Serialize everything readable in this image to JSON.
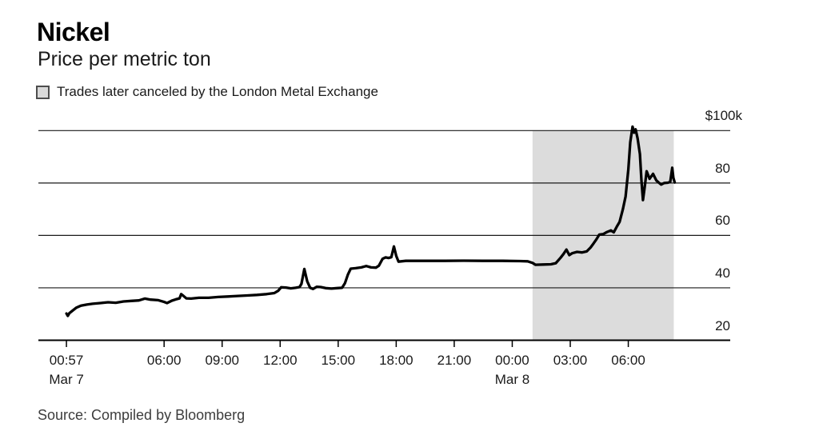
{
  "header": {
    "title": "Nickel",
    "subtitle": "Price per metric ton",
    "legend": {
      "label": "Trades later canceled by the London Metal Exchange",
      "swatch_fill": "#d9d9d9",
      "swatch_border": "#4d4d4d"
    }
  },
  "footer": {
    "source": "Source: Compiled by Bloomberg"
  },
  "colors": {
    "line": "#000000",
    "grid": "#1a1a1a",
    "axis": "#000000",
    "canceled_region_fill": "#dcdcdc",
    "background": "#ffffff"
  },
  "chart_data": {
    "type": "line",
    "title": "Nickel",
    "subtitle": "Price per metric ton",
    "ylabel": "Price per metric ton, thousands of USD",
    "grid": "on",
    "legend_position": "top-left",
    "y_axis": {
      "range": [
        20,
        100
      ],
      "ticks": [
        {
          "v": 20,
          "label": "20"
        },
        {
          "v": 40,
          "label": "40"
        },
        {
          "v": 60,
          "label": "60"
        },
        {
          "v": 80,
          "label": "80"
        },
        {
          "v": 100,
          "label": "$100k"
        }
      ]
    },
    "x_axis": {
      "unit": "hours since Mar 7 00:00",
      "t_min": -0.5,
      "t_max": 35.27,
      "ticks": [
        {
          "t": 0.95,
          "time": "00:57",
          "date": "Mar 7"
        },
        {
          "t": 6,
          "time": "06:00"
        },
        {
          "t": 9,
          "time": "09:00"
        },
        {
          "t": 12,
          "time": "12:00"
        },
        {
          "t": 15,
          "time": "15:00"
        },
        {
          "t": 18,
          "time": "18:00"
        },
        {
          "t": 21,
          "time": "21:00"
        },
        {
          "t": 24,
          "time": "00:00",
          "date": "Mar 8"
        },
        {
          "t": 27,
          "time": "03:00"
        },
        {
          "t": 30,
          "time": "06:00"
        }
      ]
    },
    "canceled_region": {
      "label": "Trades later canceled by the London Metal Exchange",
      "start_label": "Mar 8 ~01:00",
      "end_label": "Mar 8 ~08:20",
      "t_start": 25.05,
      "t_end": 32.35
    },
    "series": [
      {
        "name": "Nickel price ($k per metric ton)",
        "points": [
          [
            0.95,
            30.2
          ],
          [
            1.02,
            29.3
          ],
          [
            1.1,
            30.3
          ],
          [
            1.25,
            31.2
          ],
          [
            1.45,
            32.4
          ],
          [
            1.7,
            33.2
          ],
          [
            2.0,
            33.6
          ],
          [
            2.3,
            33.9
          ],
          [
            2.7,
            34.2
          ],
          [
            3.1,
            34.5
          ],
          [
            3.5,
            34.3
          ],
          [
            3.9,
            34.8
          ],
          [
            4.3,
            35.0
          ],
          [
            4.7,
            35.2
          ],
          [
            5.0,
            35.9
          ],
          [
            5.3,
            35.5
          ],
          [
            5.7,
            35.3
          ],
          [
            6.0,
            34.6
          ],
          [
            6.15,
            34.2
          ],
          [
            6.4,
            35.1
          ],
          [
            6.6,
            35.6
          ],
          [
            6.8,
            36.0
          ],
          [
            6.88,
            37.6
          ],
          [
            7.0,
            36.9
          ],
          [
            7.15,
            36.0
          ],
          [
            7.4,
            35.9
          ],
          [
            7.8,
            36.2
          ],
          [
            8.3,
            36.2
          ],
          [
            8.8,
            36.5
          ],
          [
            9.3,
            36.7
          ],
          [
            9.8,
            36.9
          ],
          [
            10.3,
            37.1
          ],
          [
            10.8,
            37.3
          ],
          [
            11.3,
            37.6
          ],
          [
            11.7,
            38.0
          ],
          [
            11.9,
            38.9
          ],
          [
            12.05,
            40.2
          ],
          [
            12.3,
            40.1
          ],
          [
            12.55,
            39.8
          ],
          [
            12.8,
            40.0
          ],
          [
            13.0,
            40.3
          ],
          [
            13.1,
            41.5
          ],
          [
            13.25,
            47.2
          ],
          [
            13.4,
            42.5
          ],
          [
            13.55,
            40.0
          ],
          [
            13.7,
            39.6
          ],
          [
            13.9,
            40.4
          ],
          [
            14.1,
            40.3
          ],
          [
            14.35,
            39.9
          ],
          [
            14.65,
            39.7
          ],
          [
            14.95,
            39.9
          ],
          [
            15.2,
            40.0
          ],
          [
            15.35,
            41.8
          ],
          [
            15.5,
            45.0
          ],
          [
            15.65,
            47.3
          ],
          [
            15.9,
            47.5
          ],
          [
            16.2,
            47.8
          ],
          [
            16.45,
            48.3
          ],
          [
            16.7,
            47.8
          ],
          [
            16.95,
            47.7
          ],
          [
            17.1,
            48.4
          ],
          [
            17.3,
            51.1
          ],
          [
            17.45,
            51.6
          ],
          [
            17.6,
            51.4
          ],
          [
            17.75,
            51.7
          ],
          [
            17.88,
            55.8
          ],
          [
            18.0,
            52.2
          ],
          [
            18.12,
            50.0
          ],
          [
            18.5,
            50.3
          ],
          [
            19.5,
            50.3
          ],
          [
            20.5,
            50.3
          ],
          [
            21.5,
            50.35
          ],
          [
            22.5,
            50.3
          ],
          [
            23.5,
            50.3
          ],
          [
            24.4,
            50.2
          ],
          [
            24.8,
            50.1
          ],
          [
            25.05,
            49.5
          ],
          [
            25.2,
            48.8
          ],
          [
            25.6,
            48.9
          ],
          [
            26.0,
            49.0
          ],
          [
            26.25,
            49.4
          ],
          [
            26.5,
            51.5
          ],
          [
            26.65,
            52.9
          ],
          [
            26.8,
            54.6
          ],
          [
            26.95,
            52.5
          ],
          [
            27.1,
            53.2
          ],
          [
            27.35,
            53.7
          ],
          [
            27.6,
            53.5
          ],
          [
            27.85,
            53.9
          ],
          [
            28.05,
            55.4
          ],
          [
            28.2,
            56.9
          ],
          [
            28.35,
            58.5
          ],
          [
            28.5,
            60.3
          ],
          [
            28.7,
            60.5
          ],
          [
            28.9,
            61.3
          ],
          [
            29.1,
            61.9
          ],
          [
            29.25,
            61.2
          ],
          [
            29.4,
            63.3
          ],
          [
            29.55,
            65.2
          ],
          [
            29.72,
            70.0
          ],
          [
            29.86,
            74.9
          ],
          [
            30.0,
            85.1
          ],
          [
            30.1,
            95.5
          ],
          [
            30.22,
            101.5
          ],
          [
            30.3,
            99.2
          ],
          [
            30.38,
            100.5
          ],
          [
            30.48,
            97.0
          ],
          [
            30.6,
            91.0
          ],
          [
            30.68,
            81.0
          ],
          [
            30.76,
            73.5
          ],
          [
            30.85,
            78.5
          ],
          [
            30.95,
            84.5
          ],
          [
            31.1,
            81.6
          ],
          [
            31.28,
            83.5
          ],
          [
            31.45,
            81.0
          ],
          [
            31.58,
            80.1
          ],
          [
            31.7,
            79.4
          ],
          [
            31.85,
            80.0
          ],
          [
            32.05,
            80.1
          ],
          [
            32.17,
            80.4
          ],
          [
            32.27,
            85.8
          ],
          [
            32.33,
            82.0
          ],
          [
            32.4,
            80.2
          ]
        ]
      }
    ]
  }
}
